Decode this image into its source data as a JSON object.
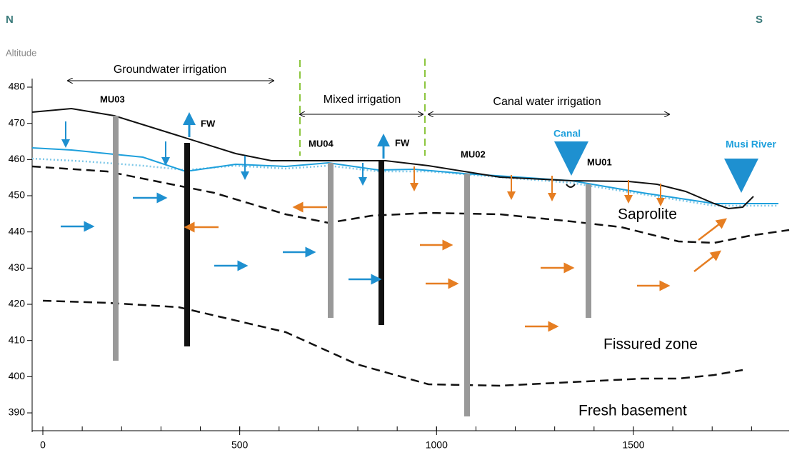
{
  "header": {
    "north": "N",
    "south": "S"
  },
  "y_axis": {
    "label": "Altitude",
    "ticks": [
      390,
      400,
      410,
      420,
      430,
      440,
      450,
      460,
      470,
      480
    ]
  },
  "x_axis": {
    "ticks": [
      0,
      500,
      1000,
      1500
    ]
  },
  "zones": [
    "Groundwater irrigation",
    "Mixed irrigation",
    "Canal water irrigation"
  ],
  "wells": [
    "MU03",
    "FW",
    "MU04",
    "FW",
    "MU02",
    "MU01"
  ],
  "features": {
    "canal": "Canal",
    "river": "Musi River"
  },
  "layers": [
    "Saprolite",
    "Fissured zone",
    "Fresh basement"
  ]
}
